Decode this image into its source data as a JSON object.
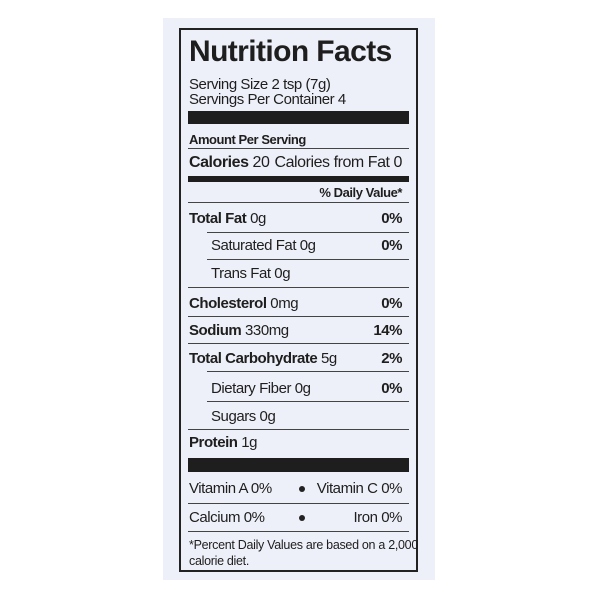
{
  "title": "Nutrition Facts",
  "serving_size": "Serving Size 2 tsp (7g)",
  "servings_per_container": "Servings Per Container 4",
  "amount_per_serving": "Amount Per Serving",
  "calories": {
    "label": "Calories",
    "value": "20",
    "from_fat": "Calories from Fat 0"
  },
  "daily_value_header": "% Daily Value*",
  "nutrients": [
    {
      "label": "Total Fat",
      "amount": "0g",
      "dv": "0%"
    },
    {
      "label": "Saturated Fat",
      "amount": "0g",
      "dv": "0%"
    },
    {
      "label": "Trans Fat",
      "amount": "0g",
      "dv": ""
    },
    {
      "label": "Cholesterol",
      "amount": "0mg",
      "dv": "0%"
    },
    {
      "label": "Sodium",
      "amount": "330mg",
      "dv": "14%"
    },
    {
      "label": "Total Carbohydrate",
      "amount": "5g",
      "dv": "2%"
    },
    {
      "label": "Dietary Fiber",
      "amount": "0g",
      "dv": "0%"
    },
    {
      "label": "Sugars",
      "amount": "0g",
      "dv": ""
    },
    {
      "label": "Protein",
      "amount": "1g",
      "dv": ""
    }
  ],
  "vitamins": {
    "vitamin_a": "Vitamin A 0%",
    "vitamin_c": "Vitamin C 0%",
    "calcium": "Calcium 0%",
    "iron": "Iron 0%"
  },
  "footnote": {
    "line1": "*Percent Daily Values are based on a 2,000",
    "line2": "calorie diet."
  }
}
